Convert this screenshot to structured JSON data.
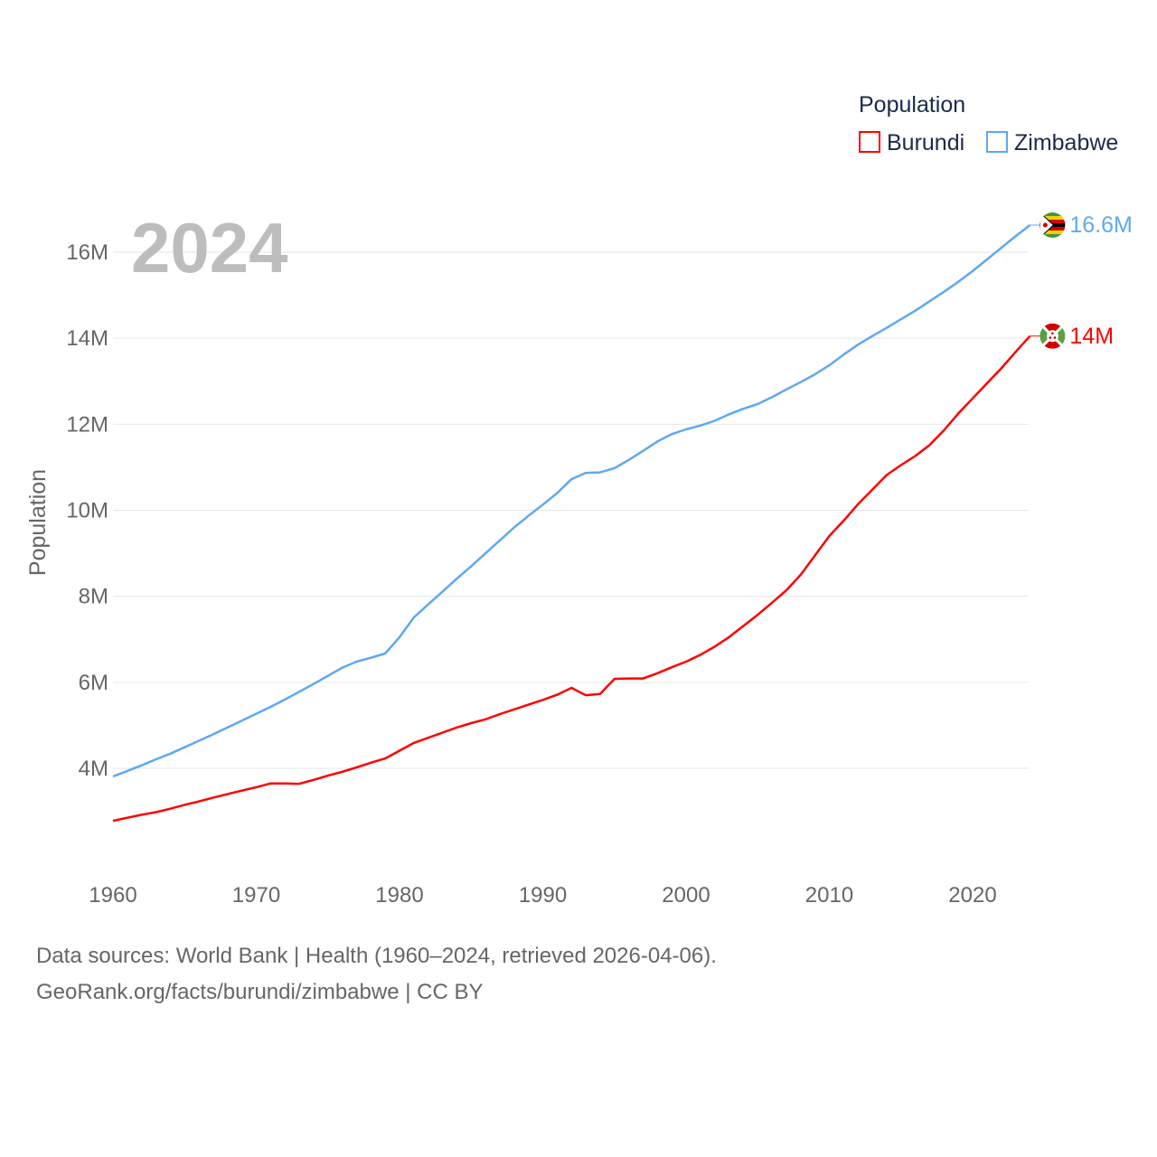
{
  "chart_data": {
    "type": "line",
    "title": "Population",
    "current_year_label": "2024",
    "ylabel": "Population",
    "xlabel": "",
    "xlim": [
      1960,
      2024
    ],
    "ylim": [
      2,
      17
    ],
    "y_unit": "millions",
    "x_ticks": [
      "1960",
      "1970",
      "1980",
      "1990",
      "2000",
      "2010",
      "2020"
    ],
    "y_ticks": [
      {
        "v": 4,
        "label": "4M"
      },
      {
        "v": 6,
        "label": "6M"
      },
      {
        "v": 8,
        "label": "8M"
      },
      {
        "v": 10,
        "label": "10M"
      },
      {
        "v": 12,
        "label": "12M"
      },
      {
        "v": 14,
        "label": "14M"
      },
      {
        "v": 16,
        "label": "16M"
      }
    ],
    "grid": true,
    "legend": {
      "title": "Population",
      "position": "top-right"
    },
    "series": [
      {
        "name": "Burundi",
        "color": "#ff0000",
        "end_label": "14M",
        "flag": "burundi-flag",
        "values": [
          2.78,
          2.85,
          2.92,
          2.98,
          3.06,
          3.15,
          3.23,
          3.32,
          3.4,
          3.48,
          3.56,
          3.65,
          3.65,
          3.64,
          3.73,
          3.83,
          3.92,
          4.02,
          4.13,
          4.23,
          4.41,
          4.59,
          4.71,
          4.83,
          4.95,
          5.05,
          5.14,
          5.26,
          5.37,
          5.48,
          5.59,
          5.71,
          5.87,
          5.7,
          5.73,
          6.08,
          6.09,
          6.09,
          6.21,
          6.35,
          6.48,
          6.64,
          6.83,
          7.05,
          7.31,
          7.57,
          7.85,
          8.14,
          8.5,
          8.95,
          9.4,
          9.76,
          10.14,
          10.48,
          10.82,
          11.05,
          11.26,
          11.52,
          11.86,
          12.25,
          12.6,
          12.95,
          13.3,
          13.68,
          14.05
        ]
      },
      {
        "name": "Zimbabwe",
        "color": "#5ea8f2",
        "end_label": "16.6M",
        "flag": "zimbabwe-flag",
        "values": [
          3.81,
          3.94,
          4.07,
          4.21,
          4.34,
          4.49,
          4.64,
          4.79,
          4.95,
          5.11,
          5.27,
          5.43,
          5.6,
          5.78,
          5.96,
          6.15,
          6.34,
          6.48,
          6.57,
          6.67,
          7.05,
          7.51,
          7.81,
          8.11,
          8.41,
          8.7,
          9.0,
          9.3,
          9.6,
          9.87,
          10.13,
          10.4,
          10.72,
          10.87,
          10.88,
          10.98,
          11.17,
          11.38,
          11.6,
          11.77,
          11.88,
          11.97,
          12.08,
          12.23,
          12.36,
          12.47,
          12.63,
          12.81,
          12.98,
          13.16,
          13.37,
          13.62,
          13.85,
          14.05,
          14.24,
          14.44,
          14.64,
          14.86,
          15.08,
          15.31,
          15.56,
          15.83,
          16.1,
          16.37,
          16.63
        ]
      }
    ]
  },
  "footer": {
    "line1": "Data sources: World Bank | Health (1960–2024, retrieved 2026-04-06).",
    "line2": "GeoRank.org/facts/burundi/zimbabwe | CC BY"
  }
}
